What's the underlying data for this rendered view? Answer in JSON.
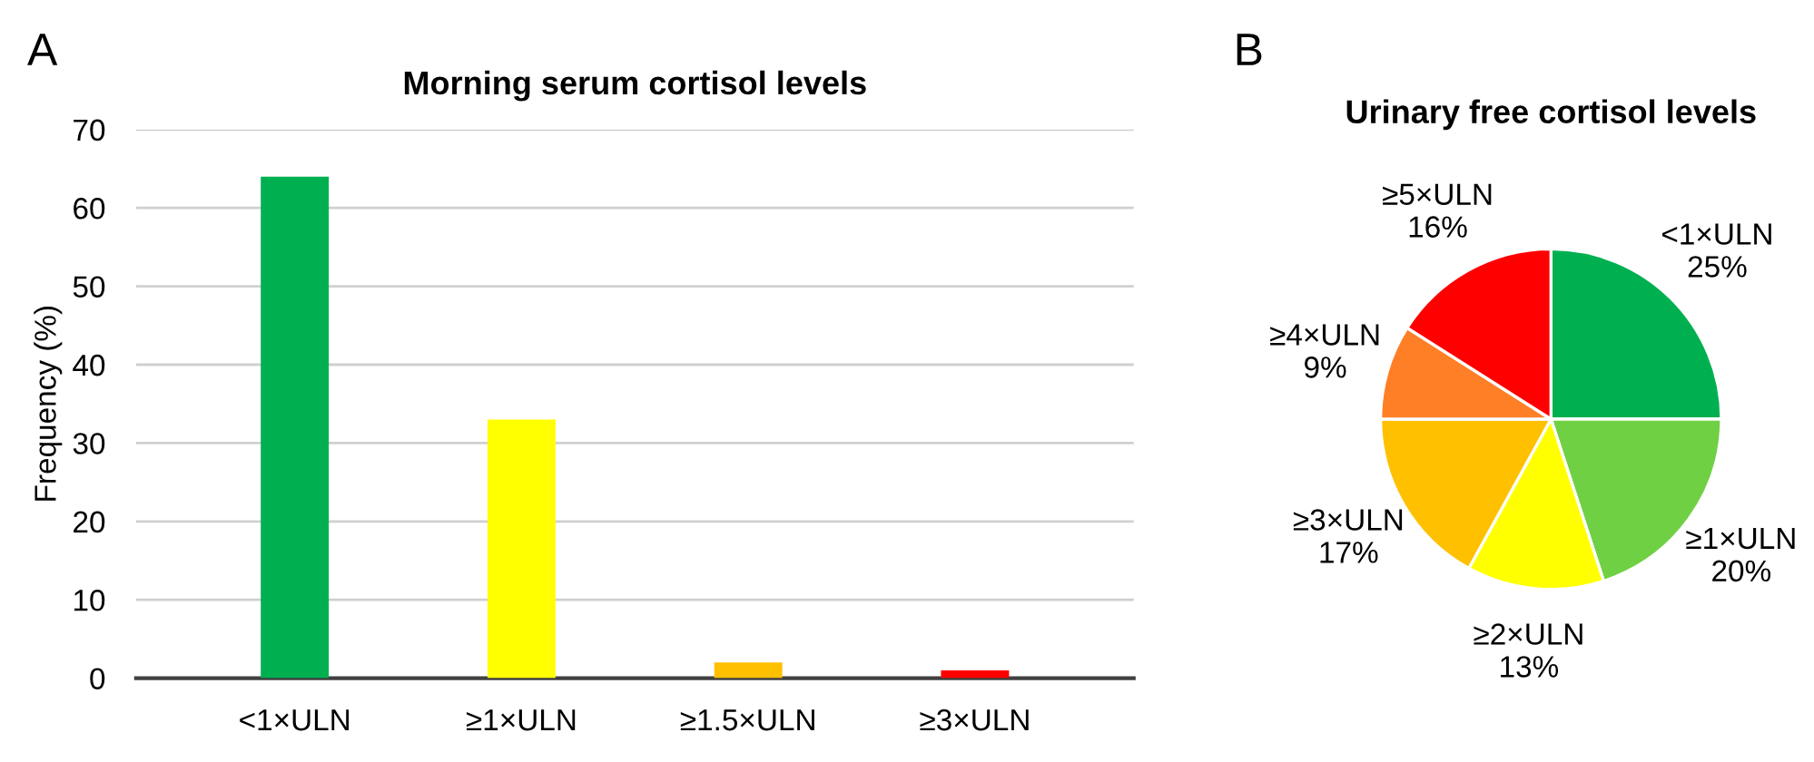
{
  "chart_data": [
    {
      "type": "bar",
      "title": "Morning serum cortisol levels",
      "ylabel": "Frequency (%)",
      "categories": [
        "<1×ULN",
        "≥1×ULN",
        "≥1.5×ULN",
        "≥3×ULN"
      ],
      "values": [
        64,
        33,
        2,
        1
      ],
      "colors": [
        "#00b050",
        "#ffff00",
        "#ffc000",
        "#ff0000"
      ],
      "ylim": [
        0,
        70
      ],
      "yticks": [
        0,
        10,
        20,
        30,
        40,
        50,
        60,
        70
      ],
      "grid": "y",
      "annotations": [
        "A"
      ]
    },
    {
      "type": "pie",
      "title": "Urinary free cortisol levels",
      "categories": [
        "<1×ULN",
        "≥1×ULN",
        "≥2×ULN",
        "≥3×ULN",
        "≥4×ULN",
        "≥5×ULN"
      ],
      "values": [
        25,
        20,
        13,
        17,
        9,
        16
      ],
      "value_labels": [
        "25%",
        "20%",
        "13%",
        "17%",
        "9%",
        "16%"
      ],
      "colors": [
        "#00b050",
        "#70d044",
        "#ffff00",
        "#ffc000",
        "#ff7f27",
        "#ff0000"
      ],
      "annotations": [
        "B"
      ]
    }
  ]
}
